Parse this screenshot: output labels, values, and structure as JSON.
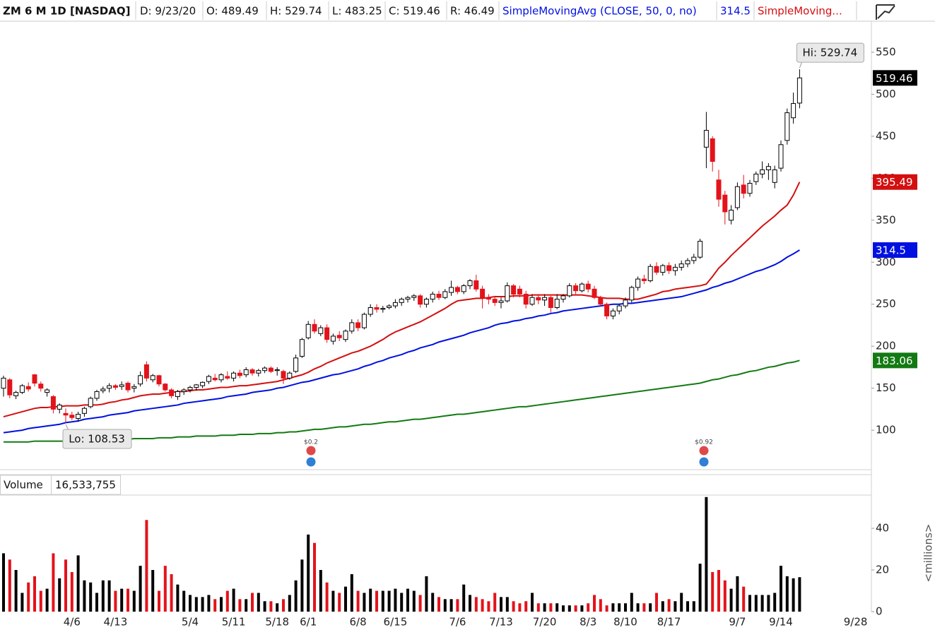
{
  "header": {
    "symbol": "ZM 6 M 1D [NASDAQ]",
    "date": "D: 9/23/20",
    "open": "O: 489.49",
    "high": "H: 529.74",
    "low": "L: 483.25",
    "close": "C: 519.46",
    "range": "R: 46.49"
  },
  "chart_data": [
    {
      "type": "candlestick",
      "up_color": "#000000",
      "down_color": "#e3131b",
      "ylim": [
        53,
        587
      ],
      "yticks": [
        100,
        150,
        200,
        250,
        300,
        350,
        400,
        450,
        500,
        550
      ],
      "grid": false,
      "annotations": [
        "Hi: 529.74",
        "Lo: 108.53"
      ],
      "events": [
        "$0.2",
        "$0.92"
      ],
      "open": [
        150,
        160,
        141,
        145,
        152,
        166,
        155,
        145,
        140,
        125,
        120,
        118,
        114,
        120,
        128,
        138,
        147,
        150,
        153,
        152,
        156,
        150,
        155,
        178,
        160,
        165,
        155,
        148,
        140,
        146,
        148,
        151,
        153,
        158,
        162,
        160,
        164,
        162,
        168,
        166,
        172,
        168,
        171,
        174,
        171,
        170,
        162,
        170,
        188,
        210,
        226,
        215,
        222,
        206,
        213,
        208,
        218,
        228,
        222,
        238,
        246,
        244,
        246,
        248,
        252,
        256,
        258,
        260,
        250,
        256,
        262,
        258,
        264,
        270,
        265,
        272,
        278,
        268,
        258,
        256,
        252,
        254,
        272,
        268,
        262,
        250,
        258,
        255,
        258,
        246,
        256,
        260,
        272,
        266,
        274,
        268,
        258,
        250,
        236,
        242,
        248,
        255,
        270,
        280,
        278,
        295,
        288,
        296,
        290,
        294,
        298,
        302,
        306,
        437,
        447,
        398,
        380,
        350,
        365,
        392,
        382,
        396,
        405,
        410,
        395,
        412,
        445,
        472,
        489.49,
        null,
        null,
        null,
        null,
        null,
        null,
        null,
        null,
        null,
        null,
        null
      ],
      "high": [
        165,
        162,
        147,
        155,
        157,
        167,
        158,
        150,
        142,
        132,
        126,
        122,
        122,
        128,
        140,
        148,
        152,
        156,
        155,
        158,
        158,
        155,
        170,
        182,
        167,
        166,
        156,
        150,
        148,
        150,
        153,
        155,
        158,
        166,
        167,
        168,
        170,
        170,
        172,
        175,
        174,
        173,
        176,
        176,
        175,
        172,
        170,
        190,
        210,
        230,
        232,
        225,
        226,
        215,
        218,
        220,
        232,
        232,
        240,
        250,
        250,
        248,
        250,
        256,
        258,
        260,
        262,
        262,
        258,
        265,
        266,
        268,
        278,
        272,
        274,
        280,
        285,
        272,
        262,
        260,
        258,
        276,
        274,
        272,
        266,
        262,
        262,
        262,
        260,
        262,
        262,
        275,
        275,
        276,
        278,
        272,
        260,
        252,
        245,
        250,
        258,
        272,
        283,
        285,
        298,
        300,
        298,
        300,
        298,
        302,
        305,
        310,
        328,
        479,
        450,
        410,
        385,
        368,
        395,
        404,
        398,
        408,
        420,
        418,
        415,
        445,
        483,
        502,
        529.74,
        null,
        null,
        null,
        null,
        null,
        null,
        null,
        null,
        null,
        null,
        null
      ],
      "low": [
        140,
        138,
        137,
        143,
        146,
        152,
        146,
        140,
        120,
        120,
        108.53,
        112,
        110,
        116,
        126,
        135,
        144,
        145,
        148,
        148,
        145,
        145,
        152,
        158,
        157,
        152,
        146,
        138,
        136,
        142,
        145,
        147,
        150,
        155,
        158,
        157,
        160,
        158,
        162,
        163,
        165,
        164,
        168,
        168,
        165,
        155,
        160,
        168,
        186,
        208,
        215,
        212,
        204,
        202,
        206,
        205,
        215,
        218,
        220,
        235,
        240,
        240,
        244,
        245,
        248,
        252,
        254,
        246,
        246,
        252,
        255,
        256,
        260,
        262,
        262,
        268,
        265,
        245,
        250,
        248,
        245,
        252,
        258,
        258,
        245,
        248,
        250,
        248,
        240,
        244,
        252,
        258,
        262,
        264,
        264,
        256,
        248,
        232,
        232,
        238,
        245,
        252,
        266,
        274,
        276,
        285,
        284,
        286,
        284,
        290,
        294,
        298,
        304,
        412,
        408,
        366,
        345,
        345,
        362,
        376,
        378,
        392,
        400,
        398,
        388,
        408,
        440,
        465,
        483.25,
        null,
        null,
        null,
        null,
        null,
        null,
        null,
        null,
        null,
        null,
        null
      ],
      "close": [
        162,
        142,
        145,
        153,
        149,
        156,
        150,
        148,
        125,
        130,
        118,
        115,
        119,
        126,
        138,
        146,
        149,
        153,
        151,
        154,
        148,
        152,
        165,
        162,
        165,
        155,
        148,
        141,
        146,
        148,
        151,
        154,
        157,
        164,
        160,
        166,
        162,
        168,
        165,
        172,
        168,
        171,
        174,
        170,
        172,
        162,
        168,
        186,
        208,
        226,
        218,
        222,
        208,
        212,
        210,
        218,
        228,
        222,
        238,
        246,
        244,
        245,
        248,
        252,
        256,
        258,
        260,
        250,
        256,
        262,
        258,
        265,
        270,
        265,
        272,
        278,
        268,
        258,
        256,
        252,
        254,
        272,
        262,
        262,
        250,
        258,
        255,
        258,
        246,
        256,
        260,
        272,
        266,
        274,
        268,
        258,
        250,
        236,
        242,
        248,
        255,
        270,
        280,
        278,
        295,
        288,
        296,
        290,
        294,
        298,
        302,
        306,
        325,
        457,
        420,
        375,
        360,
        362,
        390,
        382,
        394,
        405,
        410,
        414,
        410,
        440,
        478,
        489,
        519.46,
        null,
        null,
        null,
        null,
        null,
        null,
        null,
        null,
        null,
        null,
        null
      ],
      "series": [
        {
          "name": "SimpleMovingAvg (CLOSE, 50, 0, no)",
          "color": "#0010e0",
          "values": [
            97,
            98,
            99,
            100,
            102,
            103,
            104,
            105,
            106,
            107,
            109,
            110,
            111,
            113,
            114,
            115,
            116,
            118,
            119,
            120,
            121,
            123,
            124,
            125,
            126,
            127,
            128,
            129,
            130,
            132,
            133,
            134,
            135,
            136,
            137,
            138,
            140,
            141,
            142,
            143,
            145,
            146,
            147,
            148,
            150,
            151,
            153,
            155,
            157,
            158,
            160,
            162,
            164,
            166,
            167,
            169,
            171,
            173,
            176,
            178,
            181,
            183,
            186,
            188,
            190,
            193,
            195,
            198,
            200,
            202,
            205,
            207,
            209,
            211,
            213,
            216,
            218,
            220,
            222,
            225,
            227,
            228,
            230,
            231,
            233,
            234,
            236,
            237,
            239,
            240,
            242,
            243,
            244,
            245,
            246,
            247,
            248,
            249,
            250,
            250,
            251,
            251,
            252,
            253,
            254,
            255,
            256,
            257,
            258,
            259,
            261,
            263,
            265,
            267,
            270,
            272,
            275,
            277,
            280,
            283,
            286,
            289,
            291,
            294,
            297,
            301,
            306,
            310,
            314.5,
            null,
            null,
            null,
            null,
            null,
            null,
            null,
            null,
            null,
            null,
            null
          ]
        },
        {
          "name": "SimpleMoving...",
          "color": "#d40f0f",
          "values": [
            116,
            118,
            120,
            122,
            124,
            126,
            127,
            127,
            128,
            128,
            129,
            129,
            129,
            130,
            130,
            130,
            131,
            133,
            134,
            136,
            137,
            139,
            141,
            142,
            143,
            143,
            144,
            145,
            146,
            146,
            147,
            148,
            148,
            149,
            150,
            151,
            151,
            152,
            153,
            153,
            154,
            155,
            156,
            157,
            158,
            160,
            162,
            164,
            166,
            169,
            173,
            176,
            180,
            183,
            186,
            189,
            192,
            194,
            197,
            200,
            204,
            208,
            213,
            217,
            220,
            223,
            226,
            229,
            233,
            237,
            241,
            245,
            250,
            254,
            255,
            256,
            257,
            257,
            258,
            259,
            259,
            259,
            260,
            260,
            260,
            261,
            261,
            261,
            261,
            261,
            261,
            261,
            261,
            261,
            260,
            259,
            258,
            257,
            257,
            257,
            256,
            256,
            256,
            258,
            260,
            262,
            265,
            266,
            268,
            269,
            270,
            271,
            272,
            274,
            283,
            293,
            300,
            308,
            315,
            322,
            329,
            336,
            343,
            349,
            355,
            362,
            368,
            380,
            395.49,
            null,
            null,
            null,
            null,
            null,
            null,
            null,
            null,
            null,
            null,
            null
          ]
        },
        {
          "color": "#137a13",
          "values": [
            86,
            86,
            86,
            86,
            86,
            87,
            87,
            87,
            87,
            87,
            87,
            88,
            88,
            88,
            88,
            88,
            89,
            89,
            89,
            89,
            89,
            90,
            90,
            90,
            90,
            91,
            91,
            91,
            92,
            92,
            92,
            93,
            93,
            93,
            93,
            94,
            94,
            94,
            95,
            95,
            95,
            96,
            96,
            96,
            97,
            97,
            98,
            98,
            99,
            100,
            101,
            101,
            102,
            103,
            104,
            104,
            105,
            106,
            107,
            107,
            108,
            109,
            110,
            110,
            111,
            112,
            113,
            113,
            114,
            115,
            116,
            117,
            118,
            119,
            119,
            120,
            121,
            122,
            123,
            124,
            125,
            126,
            127,
            128,
            128,
            129,
            130,
            131,
            132,
            133,
            134,
            135,
            136,
            137,
            138,
            139,
            140,
            141,
            142,
            143,
            144,
            145,
            146,
            147,
            148,
            149,
            150,
            151,
            152,
            153,
            154,
            155,
            156,
            158,
            160,
            161,
            163,
            165,
            166,
            168,
            170,
            171,
            173,
            175,
            176,
            178,
            180,
            181,
            183.06,
            null,
            null,
            null,
            null,
            null,
            null,
            null,
            null,
            null,
            null,
            null
          ]
        }
      ]
    },
    {
      "type": "bar",
      "title": "Volume",
      "readout": "16,533,755",
      "y_label": "<millions>",
      "ylim": [
        0,
        55.6
      ],
      "yticks": [
        0,
        20,
        40
      ],
      "categories": [
        null,
        null,
        null,
        null,
        null,
        null,
        null,
        null,
        null,
        null,
        null,
        "4/6",
        null,
        null,
        null,
        null,
        null,
        null,
        "4/13",
        null,
        null,
        null,
        null,
        null,
        null,
        null,
        null,
        null,
        null,
        null,
        "5/4",
        null,
        null,
        null,
        null,
        null,
        null,
        "5/11",
        null,
        null,
        null,
        null,
        null,
        null,
        "5/18",
        null,
        null,
        null,
        null,
        "6/1",
        null,
        null,
        null,
        null,
        null,
        null,
        null,
        "6/8",
        null,
        null,
        null,
        null,
        null,
        "6/15",
        null,
        null,
        null,
        null,
        null,
        null,
        null,
        null,
        null,
        "7/6",
        null,
        null,
        null,
        null,
        null,
        null,
        "7/13",
        null,
        null,
        null,
        null,
        null,
        null,
        "7/20",
        null,
        null,
        null,
        null,
        null,
        null,
        "8/3",
        null,
        null,
        null,
        null,
        null,
        "8/10",
        null,
        null,
        null,
        null,
        null,
        null,
        "8/17",
        null,
        null,
        null,
        null,
        null,
        null,
        null,
        null,
        null,
        null,
        "9/7",
        null,
        null,
        null,
        null,
        null,
        null,
        "9/14",
        null,
        null,
        null,
        null,
        null,
        null,
        null,
        null,
        null,
        null,
        null,
        "9/28",
        null,
        null
      ],
      "values": [
        28,
        25,
        20,
        9,
        14,
        17,
        10,
        11,
        28,
        16,
        25,
        19,
        27,
        15,
        14,
        9,
        15,
        15,
        10,
        11,
        11,
        10,
        22,
        44,
        20,
        10,
        22,
        18,
        13,
        10,
        8,
        7,
        7,
        8,
        6,
        7,
        10,
        11,
        6,
        6,
        9,
        9,
        5,
        5,
        4,
        6,
        8,
        15,
        25,
        37,
        33,
        20,
        14,
        10,
        9,
        12,
        18,
        10,
        9,
        11,
        10,
        10,
        10,
        11,
        9,
        11,
        10,
        8,
        17,
        9,
        7,
        6,
        6,
        6,
        13,
        8,
        7,
        6,
        5,
        9,
        7,
        7,
        5,
        4,
        5,
        9,
        4,
        4,
        4,
        4,
        3,
        3,
        3,
        3,
        4,
        8,
        6,
        3,
        4,
        4,
        4,
        9,
        4,
        4,
        4,
        9,
        5,
        6,
        5,
        9,
        5,
        5,
        23,
        55,
        19,
        20,
        15,
        11,
        17,
        12,
        8,
        8,
        8,
        8,
        9,
        22,
        17,
        16,
        16.533755,
        null,
        null,
        null,
        null,
        null,
        null,
        null,
        null,
        null,
        null,
        null
      ]
    }
  ]
}
